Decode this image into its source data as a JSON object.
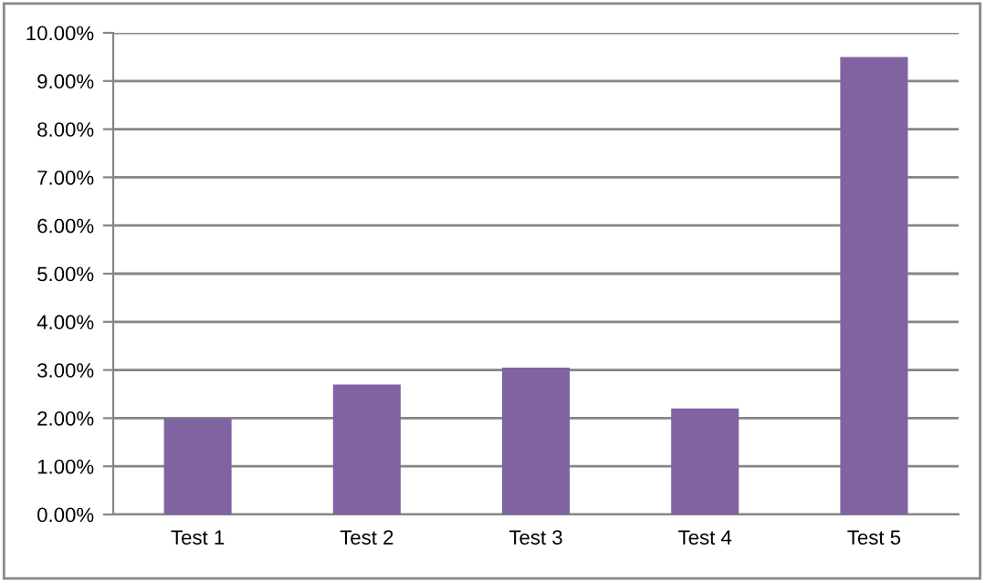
{
  "chart_data": {
    "type": "bar",
    "categories": [
      "Test 1",
      "Test 2",
      "Test 3",
      "Test 4",
      "Test 5"
    ],
    "series": [
      {
        "color": "#8064a2",
        "values": [
          2.0,
          2.7,
          3.05,
          2.2,
          9.5
        ]
      }
    ],
    "ylim": [
      0,
      10
    ],
    "yticks": [
      {
        "value": 0,
        "label": "0.00%"
      },
      {
        "value": 1,
        "label": "1.00%"
      },
      {
        "value": 2,
        "label": "2.00%"
      },
      {
        "value": 3,
        "label": "3.00%"
      },
      {
        "value": 4,
        "label": "4.00%"
      },
      {
        "value": 5,
        "label": "5.00%"
      },
      {
        "value": 6,
        "label": "6.00%"
      },
      {
        "value": 7,
        "label": "7.00%"
      },
      {
        "value": 8,
        "label": "8.00%"
      },
      {
        "value": 9,
        "label": "9.00%"
      },
      {
        "value": 10,
        "label": "10.00%"
      }
    ],
    "grid": "y",
    "legend": false
  }
}
